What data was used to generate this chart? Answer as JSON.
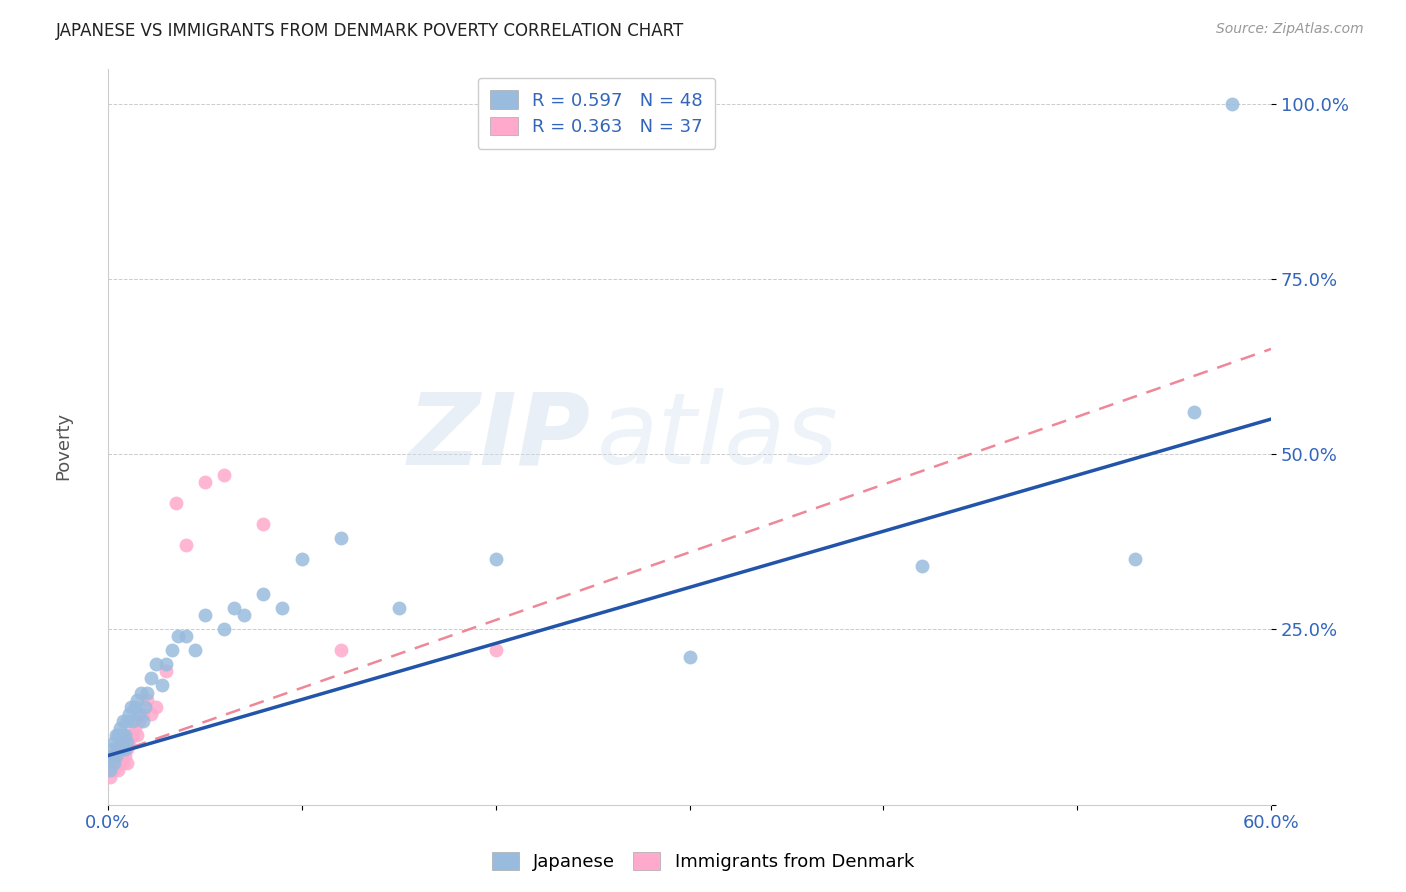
{
  "title": "JAPANESE VS IMMIGRANTS FROM DENMARK POVERTY CORRELATION CHART",
  "source": "Source: ZipAtlas.com",
  "ylabel": "Poverty",
  "xlim": [
    0.0,
    0.6
  ],
  "ylim": [
    0.0,
    1.05
  ],
  "xticks": [
    0.0,
    0.1,
    0.2,
    0.3,
    0.4,
    0.5,
    0.6
  ],
  "yticks": [
    0.0,
    0.25,
    0.5,
    0.75,
    1.0
  ],
  "xtick_labels": [
    "0.0%",
    "",
    "",
    "",
    "",
    "",
    "60.0%"
  ],
  "ytick_labels": [
    "",
    "25.0%",
    "50.0%",
    "75.0%",
    "100.0%"
  ],
  "blue_color": "#99BBDD",
  "pink_color": "#FFAACC",
  "blue_line_color": "#2255AA",
  "pink_line_color": "#EE8899",
  "watermark_zip": "ZIP",
  "watermark_atlas": "atlas",
  "japanese_x": [
    0.001,
    0.002,
    0.002,
    0.003,
    0.003,
    0.004,
    0.004,
    0.005,
    0.005,
    0.006,
    0.006,
    0.007,
    0.007,
    0.008,
    0.008,
    0.009,
    0.009,
    0.01,
    0.01,
    0.011,
    0.012,
    0.013,
    0.014,
    0.015,
    0.016,
    0.017,
    0.018,
    0.019,
    0.02,
    0.022,
    0.025,
    0.028,
    0.03,
    0.033,
    0.036,
    0.04,
    0.045,
    0.05,
    0.06,
    0.065,
    0.07,
    0.08,
    0.09,
    0.1,
    0.12,
    0.15,
    0.2,
    0.3,
    0.42,
    0.53,
    0.56,
    0.58
  ],
  "japanese_y": [
    0.05,
    0.07,
    0.08,
    0.06,
    0.09,
    0.07,
    0.1,
    0.08,
    0.1,
    0.09,
    0.11,
    0.08,
    0.1,
    0.09,
    0.12,
    0.08,
    0.1,
    0.09,
    0.12,
    0.13,
    0.14,
    0.12,
    0.14,
    0.15,
    0.13,
    0.16,
    0.12,
    0.14,
    0.16,
    0.18,
    0.2,
    0.17,
    0.2,
    0.22,
    0.24,
    0.24,
    0.22,
    0.27,
    0.25,
    0.28,
    0.27,
    0.3,
    0.28,
    0.35,
    0.38,
    0.28,
    0.35,
    0.21,
    0.34,
    0.35,
    0.56,
    1.0
  ],
  "denmark_x": [
    0.001,
    0.002,
    0.002,
    0.003,
    0.003,
    0.004,
    0.004,
    0.005,
    0.005,
    0.006,
    0.006,
    0.007,
    0.007,
    0.008,
    0.008,
    0.009,
    0.009,
    0.01,
    0.01,
    0.011,
    0.012,
    0.013,
    0.014,
    0.015,
    0.016,
    0.018,
    0.02,
    0.022,
    0.025,
    0.03,
    0.035,
    0.04,
    0.05,
    0.06,
    0.08,
    0.12,
    0.2
  ],
  "denmark_y": [
    0.04,
    0.05,
    0.06,
    0.05,
    0.07,
    0.06,
    0.08,
    0.05,
    0.07,
    0.06,
    0.08,
    0.07,
    0.09,
    0.06,
    0.08,
    0.07,
    0.09,
    0.06,
    0.08,
    0.09,
    0.1,
    0.1,
    0.11,
    0.1,
    0.12,
    0.13,
    0.15,
    0.13,
    0.14,
    0.19,
    0.43,
    0.37,
    0.46,
    0.47,
    0.4,
    0.22,
    0.22
  ],
  "blue_line_x0": 0.0,
  "blue_line_y0": 0.07,
  "blue_line_x1": 0.6,
  "blue_line_y1": 0.55,
  "pink_line_x0": 0.0,
  "pink_line_y0": 0.07,
  "pink_line_x1": 0.6,
  "pink_line_y1": 0.65
}
